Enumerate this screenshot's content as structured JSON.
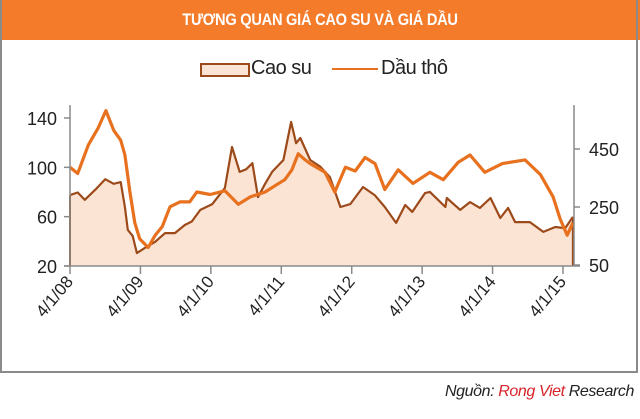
{
  "header": {
    "title": "TƯƠNG QUAN GIÁ CAO SU VÀ GIÁ DẦU"
  },
  "legend": {
    "items": [
      {
        "label": "Cao su",
        "style": "area",
        "fill": "#fce4d4",
        "stroke": "#9c4a1a"
      },
      {
        "label": "Dầu thô",
        "style": "line",
        "stroke": "#e8711f"
      }
    ]
  },
  "source": {
    "prefix": "Nguồn: ",
    "brand": "Rong Viet",
    "suffix": " Research"
  },
  "colors": {
    "header": "#f47b2a",
    "rubber_line": "#9c4a1a",
    "rubber_fill": "#fce4d4",
    "oil_line": "#e8711f",
    "axis": "#8a8a8a"
  },
  "chart_data": {
    "type": "line",
    "title": "TƯƠNG QUAN GIÁ CAO SU VÀ GIÁ DẦU",
    "xlabel": "",
    "ylabel_left": "",
    "ylabel_right": "",
    "x_ticks": [
      "4/1/08",
      "4/1/09",
      "4/1/10",
      "4/1/11",
      "4/1/12",
      "4/1/13",
      "4/1/14",
      "4/1/15"
    ],
    "x_range": [
      2008.25,
      2015.39
    ],
    "y_left": {
      "ticks": [
        20,
        60,
        100,
        140
      ],
      "range": [
        20,
        150
      ]
    },
    "y_right": {
      "ticks": [
        50,
        250,
        450
      ],
      "range": [
        50,
        600
      ]
    },
    "grid": false,
    "legend_position": "top",
    "series": [
      {
        "name": "Cao su",
        "type": "area",
        "axis": "right",
        "points": [
          [
            2008.25,
            291
          ],
          [
            2008.36,
            300
          ],
          [
            2008.46,
            275
          ],
          [
            2008.61,
            310
          ],
          [
            2008.75,
            346
          ],
          [
            2008.87,
            330
          ],
          [
            2008.97,
            336
          ],
          [
            2009.03,
            250
          ],
          [
            2009.07,
            171
          ],
          [
            2009.14,
            150
          ],
          [
            2009.2,
            91
          ],
          [
            2009.32,
            110
          ],
          [
            2009.46,
            130
          ],
          [
            2009.6,
            160
          ],
          [
            2009.74,
            160
          ],
          [
            2009.88,
            188
          ],
          [
            2009.98,
            200
          ],
          [
            2010.1,
            240
          ],
          [
            2010.27,
            260
          ],
          [
            2010.45,
            316
          ],
          [
            2010.55,
            457
          ],
          [
            2010.66,
            371
          ],
          [
            2010.75,
            380
          ],
          [
            2010.84,
            401
          ],
          [
            2010.92,
            284
          ],
          [
            2011.02,
            330
          ],
          [
            2011.12,
            371
          ],
          [
            2011.28,
            412
          ],
          [
            2011.39,
            543
          ],
          [
            2011.46,
            470
          ],
          [
            2011.52,
            488
          ],
          [
            2011.66,
            412
          ],
          [
            2011.8,
            390
          ],
          [
            2011.94,
            353
          ],
          [
            2012.09,
            250
          ],
          [
            2012.23,
            260
          ],
          [
            2012.41,
            319
          ],
          [
            2012.58,
            290
          ],
          [
            2012.72,
            250
          ],
          [
            2012.88,
            195
          ],
          [
            2013.01,
            257
          ],
          [
            2013.11,
            233
          ],
          [
            2013.29,
            298
          ],
          [
            2013.36,
            302
          ],
          [
            2013.58,
            250
          ],
          [
            2013.6,
            281
          ],
          [
            2013.79,
            240
          ],
          [
            2013.93,
            267
          ],
          [
            2014.07,
            247
          ],
          [
            2014.22,
            281
          ],
          [
            2014.36,
            212
          ],
          [
            2014.47,
            247
          ],
          [
            2014.57,
            198
          ],
          [
            2014.78,
            198
          ],
          [
            2014.97,
            164
          ],
          [
            2015.14,
            181
          ],
          [
            2015.28,
            177
          ],
          [
            2015.39,
            216
          ]
        ]
      },
      {
        "name": "Dầu thô",
        "type": "line",
        "axis": "left",
        "points": [
          [
            2008.25,
            100
          ],
          [
            2008.36,
            95
          ],
          [
            2008.51,
            118
          ],
          [
            2008.65,
            132
          ],
          [
            2008.76,
            146
          ],
          [
            2008.87,
            130
          ],
          [
            2008.97,
            122
          ],
          [
            2009.03,
            110
          ],
          [
            2009.1,
            80
          ],
          [
            2009.17,
            55
          ],
          [
            2009.24,
            42
          ],
          [
            2009.36,
            35
          ],
          [
            2009.46,
            45
          ],
          [
            2009.56,
            52
          ],
          [
            2009.67,
            68
          ],
          [
            2009.81,
            72
          ],
          [
            2009.95,
            72
          ],
          [
            2010.05,
            80
          ],
          [
            2010.24,
            78
          ],
          [
            2010.45,
            81
          ],
          [
            2010.64,
            70
          ],
          [
            2010.81,
            76
          ],
          [
            2011.02,
            80
          ],
          [
            2011.16,
            85
          ],
          [
            2011.3,
            90
          ],
          [
            2011.4,
            98
          ],
          [
            2011.49,
            111
          ],
          [
            2011.59,
            106
          ],
          [
            2011.66,
            103
          ],
          [
            2011.87,
            96
          ],
          [
            2012.01,
            80
          ],
          [
            2012.16,
            100
          ],
          [
            2012.3,
            97
          ],
          [
            2012.44,
            108
          ],
          [
            2012.58,
            103
          ],
          [
            2012.72,
            82
          ],
          [
            2012.91,
            98
          ],
          [
            2013.12,
            87
          ],
          [
            2013.36,
            96
          ],
          [
            2013.55,
            90
          ],
          [
            2013.76,
            104
          ],
          [
            2013.93,
            110
          ],
          [
            2014.14,
            96
          ],
          [
            2014.39,
            103
          ],
          [
            2014.71,
            106
          ],
          [
            2014.93,
            94
          ],
          [
            2015.11,
            76
          ],
          [
            2015.21,
            58
          ],
          [
            2015.31,
            45
          ],
          [
            2015.39,
            55
          ]
        ]
      }
    ]
  }
}
